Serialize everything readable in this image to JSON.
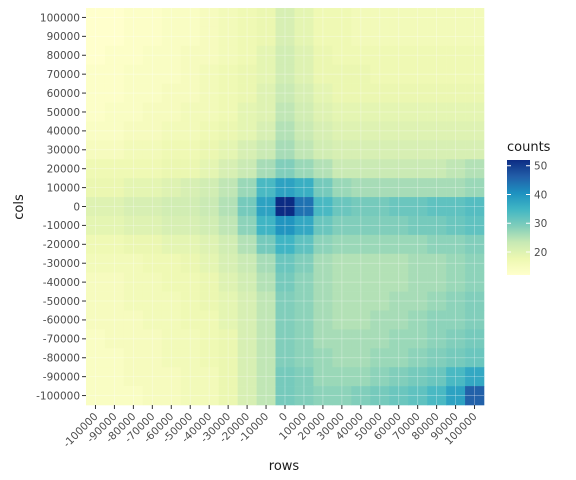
{
  "chart_data": {
    "type": "heatmap",
    "title": "",
    "xlabel": "rows",
    "ylabel": "cols",
    "x_ticks": [
      "-100000",
      "-90000",
      "-80000",
      "-70000",
      "-60000",
      "-50000",
      "-40000",
      "-30000",
      "-20000",
      "-10000",
      "0",
      "10000",
      "20000",
      "30000",
      "40000",
      "50000",
      "60000",
      "70000",
      "80000",
      "90000",
      "100000"
    ],
    "y_ticks": [
      "100000",
      "90000",
      "80000",
      "70000",
      "60000",
      "50000",
      "40000",
      "30000",
      "20000",
      "10000",
      "0",
      "-10000",
      "-20000",
      "-30000",
      "-40000",
      "-50000",
      "-60000",
      "-70000",
      "-80000",
      "-90000",
      "-100000"
    ],
    "legend": {
      "title": "counts",
      "labels": [
        "50",
        "40",
        "30",
        "20"
      ],
      "values": [
        50,
        40,
        30,
        20
      ],
      "range": [
        12,
        52
      ],
      "position": "right"
    },
    "counts": [
      [
        12,
        12,
        13,
        13,
        14,
        14,
        15,
        16,
        17,
        18,
        21,
        19,
        17,
        17,
        16,
        16,
        16,
        16,
        16,
        16,
        16
      ],
      [
        12,
        12,
        13,
        13,
        14,
        14,
        15,
        16,
        17,
        18,
        21,
        19,
        17,
        17,
        16,
        16,
        16,
        16,
        16,
        16,
        16
      ],
      [
        12,
        13,
        13,
        14,
        14,
        15,
        15,
        16,
        17,
        19,
        22,
        20,
        18,
        17,
        17,
        17,
        17,
        17,
        17,
        17,
        17
      ],
      [
        13,
        13,
        14,
        14,
        14,
        15,
        16,
        17,
        18,
        19,
        22,
        20,
        18,
        18,
        18,
        17,
        17,
        17,
        17,
        17,
        17
      ],
      [
        13,
        13,
        14,
        14,
        15,
        15,
        16,
        17,
        18,
        20,
        23,
        21,
        19,
        18,
        18,
        18,
        18,
        18,
        18,
        18,
        18
      ],
      [
        13,
        14,
        14,
        15,
        15,
        16,
        16,
        17,
        19,
        20,
        24,
        22,
        20,
        19,
        19,
        19,
        19,
        19,
        19,
        19,
        19
      ],
      [
        14,
        14,
        15,
        15,
        16,
        16,
        17,
        18,
        19,
        21,
        25,
        23,
        21,
        20,
        20,
        20,
        20,
        20,
        20,
        20,
        20
      ],
      [
        15,
        15,
        16,
        16,
        17,
        17,
        18,
        19,
        21,
        23,
        26,
        24,
        22,
        21,
        21,
        21,
        21,
        21,
        21,
        21,
        21
      ],
      [
        17,
        17,
        17,
        17,
        18,
        18,
        19,
        21,
        23,
        26,
        29,
        27,
        25,
        23,
        23,
        23,
        23,
        23,
        23,
        24,
        25
      ],
      [
        18,
        18,
        19,
        19,
        20,
        21,
        22,
        24,
        27,
        34,
        38,
        36,
        30,
        27,
        26,
        26,
        26,
        26,
        26,
        26,
        27
      ],
      [
        20,
        20,
        21,
        21,
        22,
        22,
        23,
        25,
        30,
        38,
        52,
        44,
        34,
        31,
        30,
        30,
        31,
        31,
        32,
        32,
        33
      ],
      [
        19,
        19,
        20,
        20,
        21,
        21,
        22,
        24,
        28,
        35,
        40,
        37,
        31,
        29,
        29,
        29,
        29,
        30,
        30,
        31,
        32
      ],
      [
        17,
        17,
        18,
        18,
        19,
        19,
        20,
        22,
        25,
        30,
        35,
        32,
        28,
        27,
        27,
        27,
        27,
        27,
        28,
        28,
        29
      ],
      [
        16,
        16,
        16,
        17,
        17,
        18,
        19,
        21,
        23,
        26,
        31,
        29,
        26,
        25,
        25,
        25,
        25,
        26,
        26,
        27,
        28
      ],
      [
        15,
        15,
        16,
        16,
        17,
        17,
        18,
        20,
        22,
        25,
        30,
        28,
        26,
        25,
        25,
        25,
        25,
        26,
        26,
        27,
        28
      ],
      [
        15,
        15,
        16,
        16,
        16,
        17,
        18,
        19,
        21,
        24,
        29,
        28,
        26,
        25,
        25,
        25,
        26,
        26,
        27,
        28,
        29
      ],
      [
        15,
        15,
        15,
        16,
        16,
        17,
        17,
        19,
        21,
        24,
        29,
        28,
        26,
        25,
        25,
        26,
        26,
        27,
        28,
        28,
        29
      ],
      [
        14,
        15,
        15,
        15,
        16,
        16,
        17,
        18,
        21,
        24,
        29,
        28,
        26,
        26,
        26,
        26,
        27,
        27,
        28,
        29,
        30
      ],
      [
        14,
        14,
        15,
        15,
        16,
        16,
        17,
        18,
        21,
        24,
        29,
        28,
        27,
        26,
        26,
        27,
        27,
        28,
        29,
        30,
        31
      ],
      [
        14,
        14,
        15,
        15,
        15,
        16,
        16,
        18,
        21,
        24,
        30,
        29,
        27,
        27,
        27,
        28,
        29,
        30,
        31,
        34,
        37
      ],
      [
        14,
        14,
        14,
        15,
        15,
        16,
        16,
        18,
        21,
        24,
        30,
        29,
        28,
        28,
        29,
        30,
        31,
        32,
        34,
        38,
        46
      ]
    ]
  }
}
